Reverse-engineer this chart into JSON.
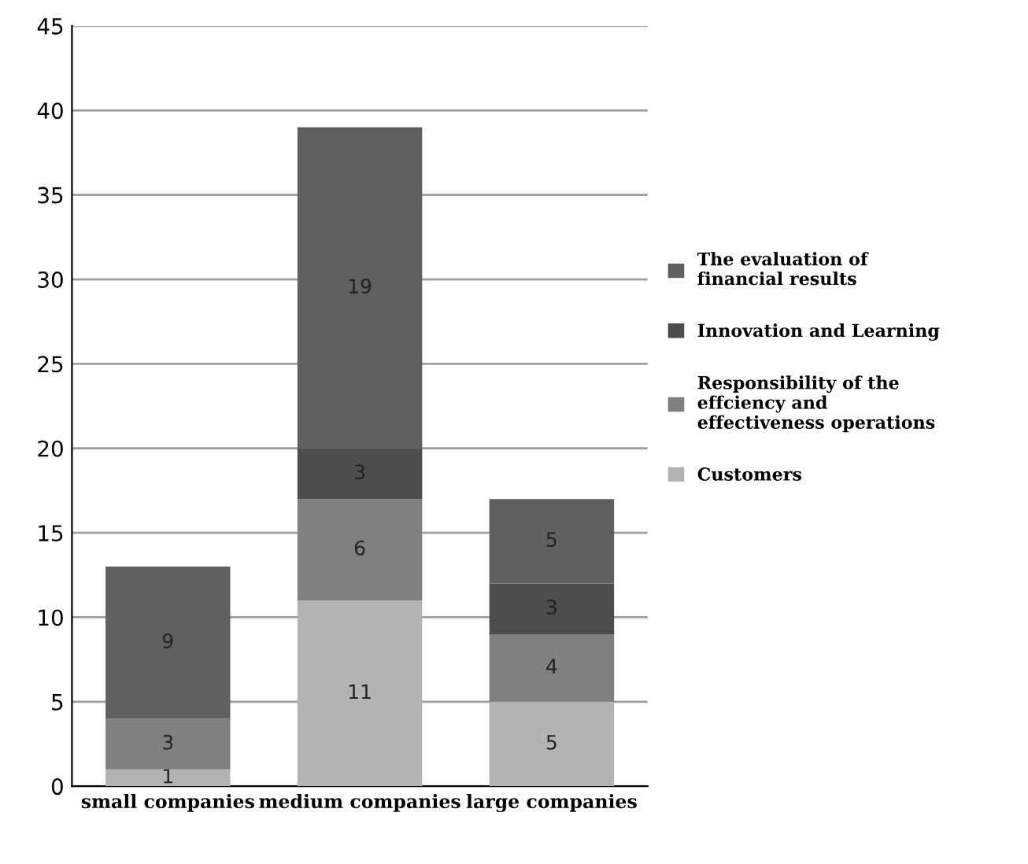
{
  "chart_data": {
    "type": "bar",
    "stacked": true,
    "categories": [
      "small companies",
      "medium companies",
      "large companies"
    ],
    "series": [
      {
        "name": "Customers",
        "color": "#b3b3b3",
        "values": [
          1,
          11,
          5
        ],
        "value_labels": [
          "1",
          "11",
          "5"
        ]
      },
      {
        "name": "Responsibility of the effciency and effectiveness operations",
        "color": "#808080",
        "values": [
          3,
          6,
          4
        ],
        "value_labels": [
          "3",
          "6",
          "4"
        ]
      },
      {
        "name": "Innovation and Learning",
        "color": "#4d4d4d",
        "values": [
          0,
          3,
          3
        ],
        "value_labels": [
          null,
          "3",
          "3"
        ]
      },
      {
        "name": "The evaluation of financial results",
        "color": "#606060",
        "values": [
          9,
          19,
          5
        ],
        "value_labels": [
          "9",
          "19",
          "5"
        ]
      }
    ],
    "ylim": [
      0,
      45
    ],
    "yticks": [
      0,
      5,
      10,
      15,
      20,
      25,
      30,
      35,
      40,
      45
    ],
    "grid": "y",
    "legend": "right"
  }
}
